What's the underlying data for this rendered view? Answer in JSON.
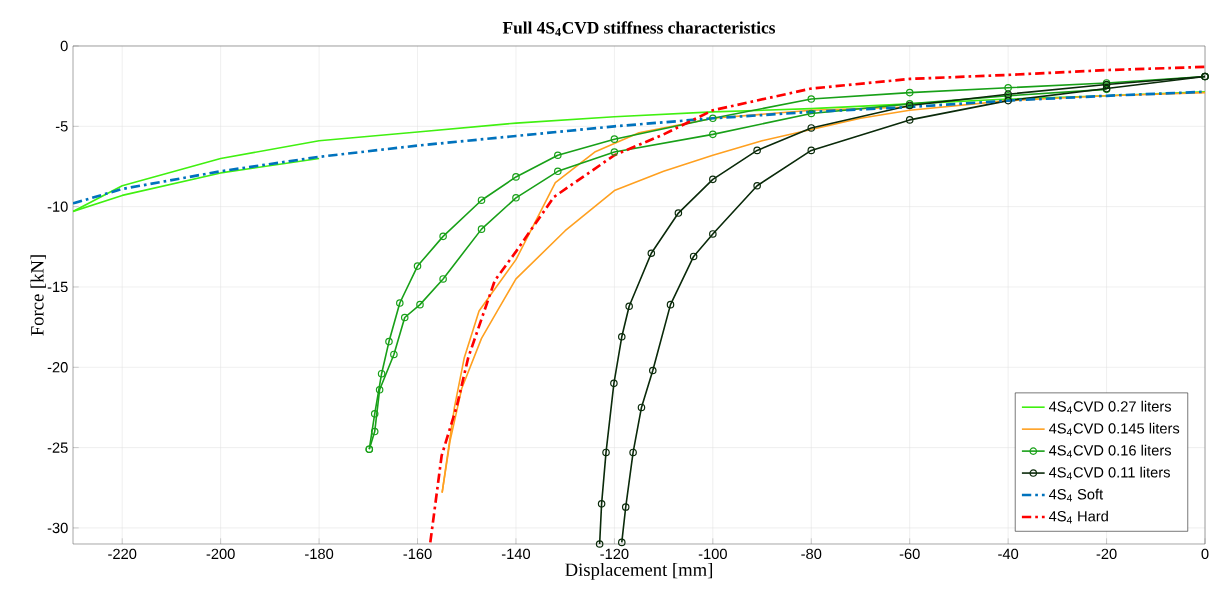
{
  "chart_data": {
    "type": "line",
    "title": "**Full 4S$_{4}$CVD stiffness characteristics**",
    "xlabel": "Displacement [mm]",
    "ylabel": "Force [kN]",
    "xlim": [
      -230,
      0
    ],
    "ylim": [
      -31,
      0
    ],
    "xticks": [
      -220,
      -200,
      -180,
      -160,
      -140,
      -120,
      -100,
      -80,
      -60,
      -40,
      -20,
      0
    ],
    "yticks": [
      -30,
      -25,
      -20,
      -15,
      -10,
      -5,
      0
    ],
    "grid": true,
    "legend": "bottom right",
    "series": [
      {
        "name": "4S$_{4}$CVD 0.27 liters",
        "color": "#40f010",
        "marker": "none",
        "line_style": "solid",
        "x": [
          0,
          -20,
          -40,
          -60,
          -80,
          -100,
          -120,
          -140,
          -160,
          -180,
          -200,
          -220,
          -230
        ],
        "values": [
          -2.85,
          -3.1,
          -3.3,
          -3.6,
          -3.9,
          -4.1,
          -4.4,
          -4.8,
          -5.35,
          -5.9,
          -7.0,
          -8.7,
          -10.3
        ]
      },
      {
        "color": "#40f010",
        "marker": "none",
        "line_style": "solid",
        "x": [
          -230,
          -220,
          -200,
          -180
        ],
        "values": [
          -10.3,
          -9.3,
          -7.9,
          -7.0
        ]
      },
      {
        "name": "4S$_{4}$CVD 0.145 liters",
        "color": "#ffa020",
        "marker": "none",
        "line_style": "solid",
        "x": [
          0,
          -20,
          -40,
          -60,
          -70,
          -80,
          -90,
          -100,
          -110,
          -120,
          -130,
          -140,
          -143.6,
          -147,
          -151,
          -153.4,
          -155
        ],
        "values": [
          -2.9,
          -3.1,
          -3.4,
          -4.0,
          -4.5,
          -5.2,
          -5.9,
          -6.8,
          -7.8,
          -9.0,
          -11.5,
          -14.5,
          -16.4,
          -18.2,
          -21.3,
          -24.6,
          -27.8
        ]
      },
      {
        "color": "#ffa020",
        "marker": "none",
        "line_style": "solid",
        "x": [
          -155,
          -152.5,
          -150.5,
          -147.5,
          -140,
          -132,
          -124,
          -115,
          -100,
          -80,
          -60
        ],
        "values": [
          -27.8,
          -22.5,
          -19.4,
          -16.5,
          -13.3,
          -8.5,
          -6.6,
          -5.4,
          -4.5,
          -4.0,
          -3.8
        ]
      },
      {
        "name": "4S$_{4}$CVD 0.16 liters",
        "color": "#18a018",
        "marker": "circle",
        "line_style": "solid",
        "x": [
          0,
          -20,
          -40,
          -60,
          -80,
          -100,
          -120,
          -131.5,
          -140,
          -147,
          -154.8,
          -160,
          -163.6,
          -165.8,
          -167.3,
          -168.7,
          -169.8
        ],
        "values": [
          -1.9,
          -2.3,
          -2.6,
          -2.9,
          -3.3,
          -4.5,
          -5.8,
          -6.8,
          -8.15,
          -9.6,
          -11.85,
          -13.7,
          -16.0,
          -18.4,
          -20.4,
          -22.9,
          -25.1
        ]
      },
      {
        "color": "#18a018",
        "marker": "circle",
        "line_style": "solid",
        "x": [
          -169.8,
          -168.7,
          -167.7,
          -164.8,
          -162.6,
          -159.5,
          -154.8,
          -147,
          -140,
          -131.5,
          -120,
          -100,
          -80,
          -60,
          -40,
          -20
        ],
        "values": [
          -25.1,
          -24.0,
          -21.4,
          -19.2,
          -16.9,
          -16.1,
          -14.5,
          -11.4,
          -9.45,
          -7.8,
          -6.6,
          -5.5,
          -4.2,
          -3.6,
          -3.1,
          -2.7
        ]
      },
      {
        "name": "4S$_{4}$CVD 0.11 liters",
        "color": "#0a2a0a",
        "marker": "circle",
        "line_style": "solid",
        "x": [
          0,
          -20,
          -40,
          -60,
          -80,
          -91,
          -100,
          -107,
          -112.5,
          -117,
          -118.5,
          -120.1,
          -121.7,
          -122.6,
          -123
        ],
        "values": [
          -1.9,
          -2.4,
          -3.0,
          -3.7,
          -5.1,
          -6.5,
          -8.3,
          -10.4,
          -12.9,
          -16.2,
          -18.1,
          -21.0,
          -25.3,
          -28.5,
          -31.0
        ]
      },
      {
        "color": "#0a2a0a",
        "marker": "circle",
        "line_style": "solid",
        "x": [
          -118.5,
          -117.7,
          -116.2,
          -114.5,
          -112.2,
          -108.6,
          -103.9,
          -100,
          -91,
          -80,
          -60,
          -40,
          -20,
          0
        ],
        "values": [
          -30.9,
          -28.7,
          -25.3,
          -22.5,
          -20.2,
          -16.1,
          -13.1,
          -11.7,
          -8.7,
          -6.5,
          -4.6,
          -3.4,
          -2.65,
          -1.9
        ]
      },
      {
        "name": "4S$_{4}$ Soft",
        "color": "#0072bd",
        "marker": "none",
        "line_style": "dashdot",
        "x": [
          -230,
          -220,
          -200,
          -180,
          -160,
          -140,
          -120,
          -100,
          -80,
          -60,
          -40,
          -20,
          0
        ],
        "values": [
          -9.8,
          -8.9,
          -7.8,
          -6.9,
          -6.2,
          -5.6,
          -5.0,
          -4.5,
          -4.1,
          -3.8,
          -3.4,
          -3.1,
          -2.85
        ]
      },
      {
        "name": "4S$_{4}$ Hard",
        "color": "#ff0000",
        "marker": "none",
        "line_style": "dashdot",
        "x": [
          -157.4,
          -155.1,
          -152,
          -149.7,
          -144.3,
          -140,
          -132.3,
          -120,
          -110,
          -100,
          -80,
          -60,
          -40,
          -20,
          0
        ],
        "values": [
          -30.9,
          -25.5,
          -22.4,
          -19.4,
          -14.6,
          -12.8,
          -9.4,
          -6.8,
          -5.5,
          -4.0,
          -2.65,
          -2.05,
          -1.8,
          -1.5,
          -1.3
        ]
      }
    ]
  }
}
